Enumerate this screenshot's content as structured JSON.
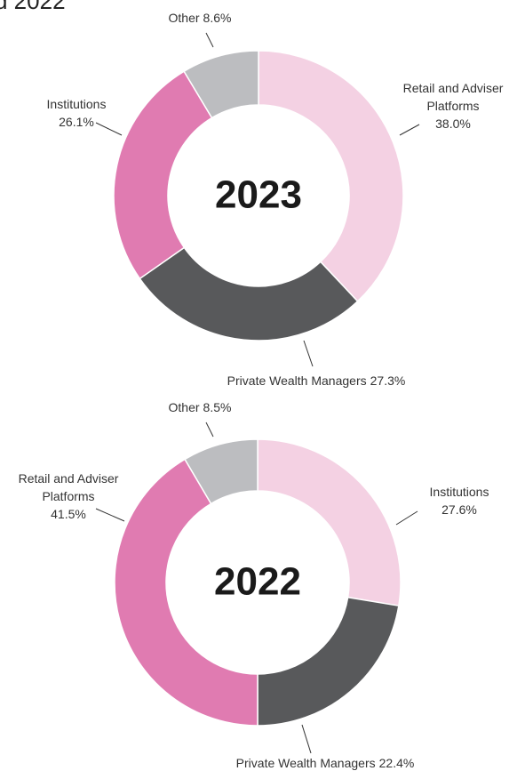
{
  "header": {
    "title": "d 2022"
  },
  "chart_data": [
    {
      "type": "donut",
      "title": "2023",
      "categories": [
        "Retail and Adviser Platforms",
        "Private Wealth Managers",
        "Institutions",
        "Other"
      ],
      "values": [
        38.0,
        27.3,
        26.1,
        8.6
      ],
      "value_labels": [
        "38.0%",
        "27.3%",
        "26.1%",
        "8.6%"
      ],
      "colors": [
        "#f4d1e3",
        "#58595b",
        "#e07bb1",
        "#bcbdc0"
      ]
    },
    {
      "type": "donut",
      "title": "2022",
      "categories": [
        "Institutions",
        "Private Wealth Managers",
        "Retail and Adviser Platforms",
        "Other"
      ],
      "values": [
        27.6,
        22.4,
        41.5,
        8.5
      ],
      "value_labels": [
        "27.6%",
        "22.4%",
        "41.5%",
        "8.5%"
      ],
      "colors": [
        "#f4d1e3",
        "#58595b",
        "#e07bb1",
        "#bcbdc0"
      ]
    }
  ]
}
